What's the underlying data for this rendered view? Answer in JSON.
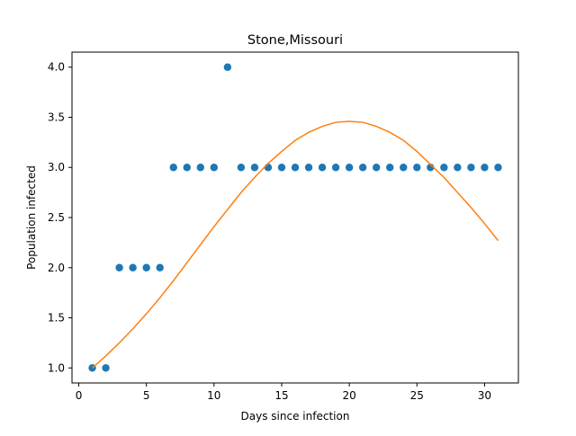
{
  "chart_data": {
    "type": "scatter",
    "title": "Stone,Missouri",
    "xlabel": "Days since infection",
    "ylabel": "Population infected",
    "xlim": [
      -0.5,
      32.5
    ],
    "ylim": [
      0.85,
      4.15
    ],
    "x_ticks": [
      0,
      5,
      10,
      15,
      20,
      25,
      30
    ],
    "x_tick_labels": [
      "0",
      "5",
      "10",
      "15",
      "20",
      "25",
      "30"
    ],
    "y_ticks": [
      1.0,
      1.5,
      2.0,
      2.5,
      3.0,
      3.5,
      4.0
    ],
    "y_tick_labels": [
      "1.0",
      "1.5",
      "2.0",
      "2.5",
      "3.0",
      "3.5",
      "4.0"
    ],
    "grid": false,
    "legend": "none",
    "series": [
      {
        "kind": "scatter",
        "color": "#1f77b4",
        "x": [
          1,
          2,
          3,
          4,
          5,
          6,
          7,
          8,
          9,
          10,
          11,
          12,
          13,
          14,
          15,
          16,
          17,
          18,
          19,
          20,
          21,
          22,
          23,
          24,
          25,
          26,
          27,
          28,
          29,
          30,
          31
        ],
        "y": [
          1,
          1,
          2,
          2,
          2,
          2,
          3,
          3,
          3,
          3,
          4,
          3,
          3,
          3,
          3,
          3,
          3,
          3,
          3,
          3,
          3,
          3,
          3,
          3,
          3,
          3,
          3,
          3,
          3,
          3,
          3
        ]
      },
      {
        "kind": "line",
        "color": "#ff7f0e",
        "x": [
          1,
          2,
          3,
          4,
          5,
          6,
          7,
          8,
          9,
          10,
          11,
          12,
          13,
          14,
          15,
          16,
          17,
          18,
          19,
          20,
          21,
          22,
          23,
          24,
          25,
          26,
          27,
          28,
          29,
          30,
          31
        ],
        "y": [
          1.0,
          1.12,
          1.25,
          1.39,
          1.54,
          1.7,
          1.87,
          2.05,
          2.23,
          2.41,
          2.58,
          2.75,
          2.9,
          3.04,
          3.16,
          3.27,
          3.35,
          3.41,
          3.45,
          3.46,
          3.45,
          3.41,
          3.35,
          3.27,
          3.16,
          3.03,
          2.9,
          2.75,
          2.6,
          2.44,
          2.27
        ]
      }
    ]
  }
}
